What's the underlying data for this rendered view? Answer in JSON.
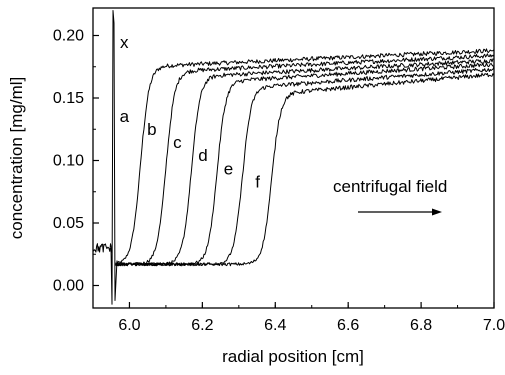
{
  "chart_data": {
    "type": "line",
    "title": "",
    "xlabel": "radial position [cm]",
    "ylabel": "concentration [mg/ml]",
    "xlim": [
      5.9,
      7.0
    ],
    "ylim": [
      -0.018,
      0.222
    ],
    "xticks": [
      6.0,
      6.2,
      6.4,
      6.6,
      6.8,
      7.0
    ],
    "xtick_labels": [
      "6.0",
      "6.2",
      "6.4",
      "6.6",
      "6.8",
      "7.0"
    ],
    "yticks": [
      0.0,
      0.05,
      0.1,
      0.15,
      0.2
    ],
    "ytick_labels": [
      "0.00",
      "0.05",
      "0.10",
      "0.15",
      "0.20"
    ],
    "grid": false,
    "legend": "none",
    "meniscus_label": "x",
    "meniscus_x": 5.955,
    "baseline": 0.017,
    "annotation": "centrifugal field",
    "series": [
      {
        "name": "a",
        "boundary": 6.03,
        "plateau_start": 0.175,
        "plateau_end": 0.188
      },
      {
        "name": "b",
        "boundary": 6.1,
        "plateau_start": 0.171,
        "plateau_end": 0.184
      },
      {
        "name": "c",
        "boundary": 6.17,
        "plateau_start": 0.167,
        "plateau_end": 0.18
      },
      {
        "name": "d",
        "boundary": 6.24,
        "plateau_start": 0.163,
        "plateau_end": 0.177
      },
      {
        "name": "e",
        "boundary": 6.31,
        "plateau_start": 0.158,
        "plateau_end": 0.173
      },
      {
        "name": "f",
        "boundary": 6.39,
        "plateau_start": 0.153,
        "plateau_end": 0.169
      }
    ]
  }
}
